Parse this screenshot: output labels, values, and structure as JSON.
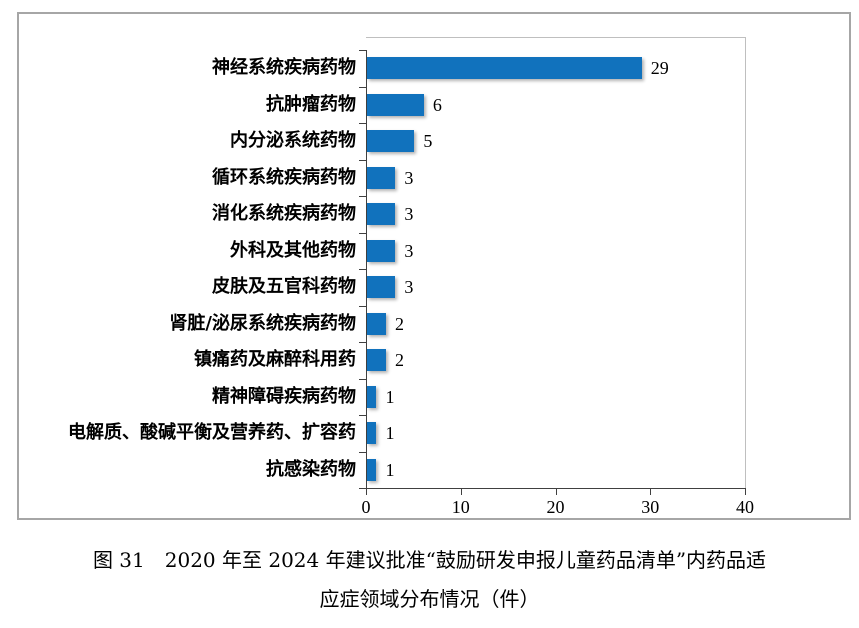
{
  "chart_data": {
    "type": "bar",
    "orientation": "horizontal",
    "categories": [
      "神经系统疾病药物",
      "抗肿瘤药物",
      "内分泌系统药物",
      "循环系统疾病药物",
      "消化系统疾病药物",
      "外科及其他药物",
      "皮肤及五官科药物",
      "肾脏/泌尿系统疾病药物",
      "镇痛药及麻醉科用药",
      "精神障碍疾病药物",
      "电解质、酸碱平衡及营养药、扩容药",
      "抗感染药物"
    ],
    "values": [
      29,
      6,
      5,
      3,
      3,
      3,
      3,
      2,
      2,
      1,
      1,
      1
    ],
    "data_labels": true,
    "xlim": [
      0,
      40
    ],
    "xticks": [
      0,
      10,
      20,
      30,
      40
    ],
    "grid": false,
    "legend": false,
    "title": "",
    "xlabel": "",
    "ylabel": ""
  },
  "caption": {
    "line1": "图 31　2020 年至 2024 年建议批准“鼓励研发申报儿童药品清单”内药品适",
    "line2": "应症领域分布情况（件）"
  },
  "colors": {
    "bar": "#1172BD",
    "axis": "#404040",
    "plot_border": "#BFBFBF",
    "frame_border": "#A6A6A6"
  }
}
